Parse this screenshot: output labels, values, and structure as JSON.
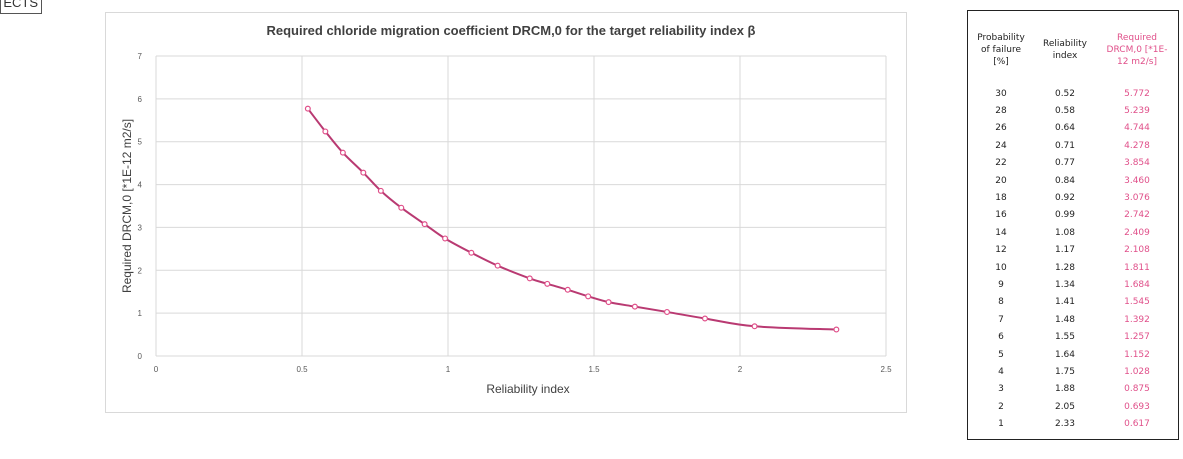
{
  "corner_label": "ECTS",
  "chart_data": {
    "type": "line",
    "title": "Required chloride migration coefficient DRCM,0 for the target reliability index β",
    "xlabel": "Reliability index",
    "ylabel": "Required DRCM,0 [*1E-12 m2/s]",
    "xlim": [
      0,
      2.5
    ],
    "ylim": [
      0,
      7
    ],
    "x_ticks": [
      "0",
      "0.5",
      "1",
      "1.5",
      "2",
      "2.5"
    ],
    "y_ticks": [
      "0",
      "1",
      "2",
      "3",
      "4",
      "5",
      "6",
      "7"
    ],
    "grid": true,
    "line_color": "#b93a72",
    "marker_color": "#e0508a",
    "series": [
      {
        "x": [
          0.52,
          0.58,
          0.64,
          0.71,
          0.77,
          0.84,
          0.92,
          0.99,
          1.08,
          1.17,
          1.28,
          1.34,
          1.41,
          1.48,
          1.55,
          1.64,
          1.75,
          1.88,
          2.05,
          2.33
        ],
        "y": [
          5.772,
          5.239,
          4.744,
          4.278,
          3.854,
          3.46,
          3.076,
          2.742,
          2.409,
          2.108,
          1.811,
          1.684,
          1.545,
          1.392,
          1.257,
          1.152,
          1.028,
          0.875,
          0.693,
          0.617
        ]
      }
    ]
  },
  "table": {
    "headers": [
      "Probability of failure [%]",
      "Reliability index",
      "Required DRCM,0 [*1E-12 m2/s]"
    ],
    "rows": [
      [
        "30",
        "0.52",
        "5.772"
      ],
      [
        "28",
        "0.58",
        "5.239"
      ],
      [
        "26",
        "0.64",
        "4.744"
      ],
      [
        "24",
        "0.71",
        "4.278"
      ],
      [
        "22",
        "0.77",
        "3.854"
      ],
      [
        "20",
        "0.84",
        "3.460"
      ],
      [
        "18",
        "0.92",
        "3.076"
      ],
      [
        "16",
        "0.99",
        "2.742"
      ],
      [
        "14",
        "1.08",
        "2.409"
      ],
      [
        "12",
        "1.17",
        "2.108"
      ],
      [
        "10",
        "1.28",
        "1.811"
      ],
      [
        "9",
        "1.34",
        "1.684"
      ],
      [
        "8",
        "1.41",
        "1.545"
      ],
      [
        "7",
        "1.48",
        "1.392"
      ],
      [
        "6",
        "1.55",
        "1.257"
      ],
      [
        "5",
        "1.64",
        "1.152"
      ],
      [
        "4",
        "1.75",
        "1.028"
      ],
      [
        "3",
        "1.88",
        "0.875"
      ],
      [
        "2",
        "2.05",
        "0.693"
      ],
      [
        "1",
        "2.33",
        "0.617"
      ]
    ]
  }
}
